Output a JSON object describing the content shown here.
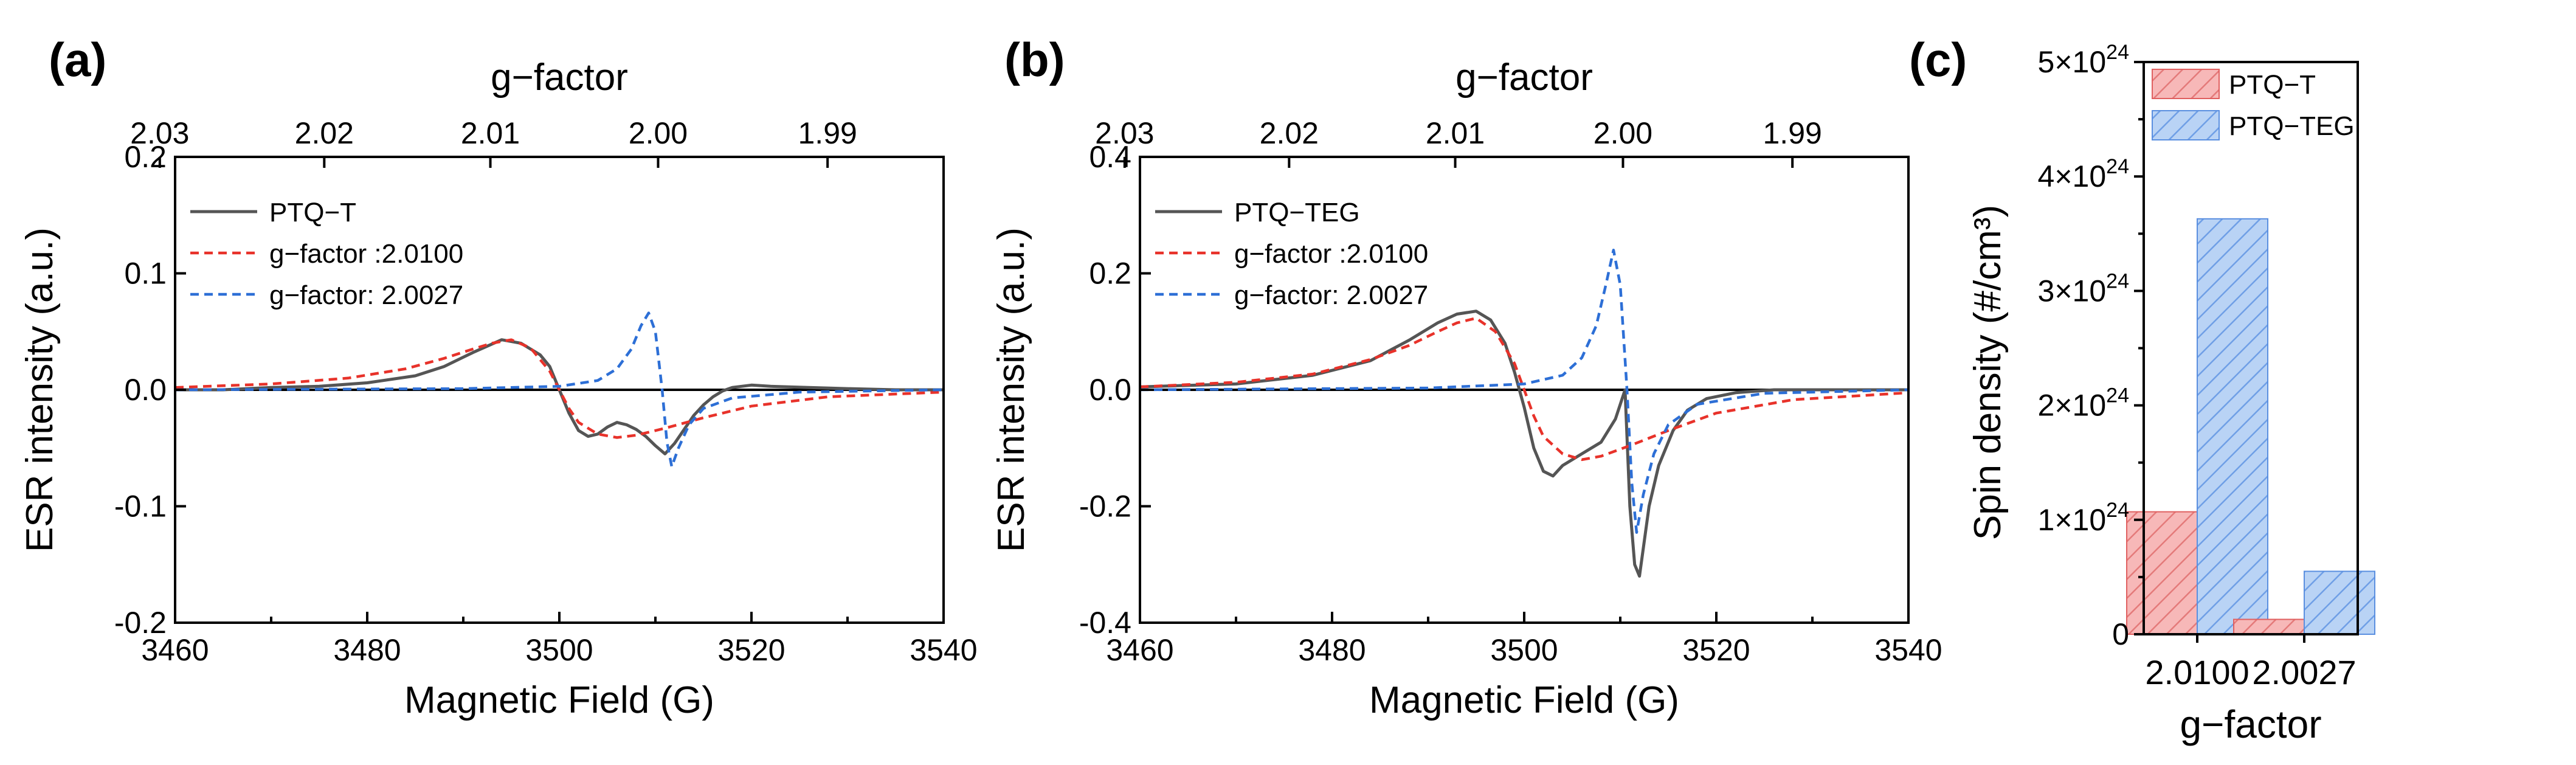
{
  "chart_data": [
    {
      "panel": "(a)",
      "type": "line",
      "xlabel": "Magnetic Field (G)",
      "ylabel": "ESR intensity (a.u.)",
      "top_axis_label": "g−factor",
      "top_axis_ticks": [
        "2.03",
        "2.02",
        "2.01",
        "2.00",
        "1.99"
      ],
      "top_axis_tick_values": [
        2.03,
        2.02,
        2.01,
        2.0,
        1.99
      ],
      "xlim": [
        3460,
        3540
      ],
      "ylim": [
        -0.2,
        0.2
      ],
      "xticks": [
        3460,
        3480,
        3500,
        3520,
        3540
      ],
      "yticks": [
        -0.2,
        -0.1,
        0.0,
        0.1,
        0.2
      ],
      "xtick_labels": [
        "3460",
        "3480",
        "3500",
        "3520",
        "3540"
      ],
      "ytick_labels": [
        "-0.2",
        "-0.1",
        "0.0",
        "0.1",
        "0.2"
      ],
      "legend_position": "top-left",
      "series": [
        {
          "name": "PTQ−T",
          "color": "#555555",
          "style": "solid",
          "x": [
            3460,
            3465,
            3470,
            3475,
            3480,
            3485,
            3488,
            3491,
            3494,
            3496,
            3498,
            3499,
            3500,
            3501,
            3502,
            3503,
            3504,
            3505,
            3506,
            3507,
            3508,
            3509,
            3510,
            3511,
            3512,
            3513,
            3514,
            3515,
            3516,
            3517,
            3518,
            3520,
            3522,
            3526,
            3530,
            3535,
            3540
          ],
          "y": [
            0.0,
            0.0,
            0.002,
            0.003,
            0.006,
            0.012,
            0.02,
            0.032,
            0.043,
            0.04,
            0.03,
            0.02,
            0.0,
            -0.02,
            -0.035,
            -0.04,
            -0.038,
            -0.032,
            -0.028,
            -0.03,
            -0.034,
            -0.04,
            -0.048,
            -0.055,
            -0.046,
            -0.034,
            -0.022,
            -0.013,
            -0.006,
            -0.001,
            0.002,
            0.004,
            0.003,
            0.002,
            0.001,
            0.0,
            0.0
          ]
        },
        {
          "name": "g−factor :2.0100",
          "color": "#e8322a",
          "style": "dashed",
          "x": [
            3460,
            3470,
            3478,
            3484,
            3488,
            3491,
            3493,
            3495,
            3497,
            3499,
            3500,
            3501,
            3502,
            3504,
            3506,
            3508,
            3511,
            3515,
            3520,
            3528,
            3540
          ],
          "y": [
            0.002,
            0.005,
            0.01,
            0.018,
            0.027,
            0.035,
            0.04,
            0.043,
            0.036,
            0.016,
            0.0,
            -0.016,
            -0.028,
            -0.038,
            -0.041,
            -0.039,
            -0.033,
            -0.024,
            -0.014,
            -0.006,
            -0.002
          ]
        },
        {
          "name": "g−factor: 2.0027",
          "color": "#2d6fd6",
          "style": "dashed",
          "x": [
            3460,
            3490,
            3500,
            3504,
            3506,
            3507.5,
            3508.5,
            3509.3,
            3510,
            3510.7,
            3511.2,
            3511.7,
            3512.4,
            3513.5,
            3515,
            3518,
            3525,
            3540
          ],
          "y": [
            0.0,
            0.001,
            0.003,
            0.008,
            0.018,
            0.035,
            0.055,
            0.066,
            0.05,
            0.0,
            -0.045,
            -0.066,
            -0.05,
            -0.03,
            -0.016,
            -0.007,
            -0.002,
            0.0
          ]
        }
      ]
    },
    {
      "panel": "(b)",
      "type": "line",
      "xlabel": "Magnetic Field (G)",
      "ylabel": "ESR intensity (a.u.)",
      "top_axis_label": "g−factor",
      "top_axis_ticks": [
        "2.03",
        "2.02",
        "2.01",
        "2.00",
        "1.99"
      ],
      "top_axis_tick_values": [
        2.03,
        2.02,
        2.01,
        2.0,
        1.99
      ],
      "xlim": [
        3460,
        3540
      ],
      "ylim": [
        -0.4,
        0.4
      ],
      "xticks": [
        3460,
        3480,
        3500,
        3520,
        3540
      ],
      "yticks": [
        -0.4,
        -0.2,
        0.0,
        0.2,
        0.4
      ],
      "xtick_labels": [
        "3460",
        "3480",
        "3500",
        "3520",
        "3540"
      ],
      "ytick_labels": [
        "-0.4",
        "-0.2",
        "0.0",
        "0.2",
        "0.4"
      ],
      "legend_position": "top-left",
      "series": [
        {
          "name": "PTQ−TEG",
          "color": "#555555",
          "style": "solid",
          "x": [
            3460,
            3470,
            3478,
            3484,
            3488,
            3491,
            3493,
            3495,
            3496.5,
            3498,
            3499,
            3500,
            3501,
            3502,
            3503,
            3504,
            3506,
            3508,
            3509.5,
            3510.5,
            3511,
            3511.5,
            3512,
            3512.5,
            3513,
            3514,
            3515.5,
            3517,
            3519,
            3522,
            3526,
            3530,
            3535,
            3540
          ],
          "y": [
            0.005,
            0.01,
            0.025,
            0.05,
            0.085,
            0.115,
            0.13,
            0.135,
            0.12,
            0.08,
            0.03,
            -0.03,
            -0.1,
            -0.14,
            -0.148,
            -0.13,
            -0.11,
            -0.09,
            -0.05,
            0.0,
            -0.2,
            -0.3,
            -0.32,
            -0.26,
            -0.2,
            -0.13,
            -0.07,
            -0.035,
            -0.015,
            -0.005,
            0.0,
            0.0,
            0.0,
            0.0
          ]
        },
        {
          "name": "g−factor :2.0100",
          "color": "#e8322a",
          "style": "dashed",
          "x": [
            3460,
            3470,
            3478,
            3484,
            3488,
            3491,
            3493,
            3495,
            3497,
            3499,
            3500,
            3501,
            3502,
            3504,
            3506,
            3508,
            3511,
            3515,
            3520,
            3528,
            3540
          ],
          "y": [
            0.005,
            0.013,
            0.027,
            0.052,
            0.076,
            0.1,
            0.115,
            0.123,
            0.1,
            0.045,
            0.0,
            -0.045,
            -0.08,
            -0.11,
            -0.12,
            -0.114,
            -0.096,
            -0.07,
            -0.04,
            -0.017,
            -0.005
          ]
        },
        {
          "name": "g−factor: 2.0027",
          "color": "#2d6fd6",
          "style": "dashed",
          "x": [
            3460,
            3490,
            3500,
            3504,
            3506,
            3507.5,
            3508.5,
            3509.3,
            3510,
            3510.7,
            3511.2,
            3511.7,
            3512.4,
            3513.5,
            3515,
            3518,
            3525,
            3540
          ],
          "y": [
            0.0,
            0.003,
            0.01,
            0.025,
            0.055,
            0.11,
            0.18,
            0.24,
            0.18,
            0.0,
            -0.16,
            -0.245,
            -0.18,
            -0.11,
            -0.06,
            -0.025,
            -0.006,
            0.0
          ]
        }
      ]
    },
    {
      "panel": "(c)",
      "type": "bar",
      "title": "",
      "xlabel": "g−factor",
      "ylabel": "Spin density (#/cm³)",
      "categories": [
        "2.0100",
        "2.0027"
      ],
      "ylim": [
        0,
        5e+24
      ],
      "yticks": [
        0,
        1e+24,
        2e+24,
        3e+24,
        4e+24,
        5e+24
      ],
      "ytick_labels": [
        {
          "base": "0",
          "exp": ""
        },
        {
          "base": "1×10",
          "exp": "24"
        },
        {
          "base": "2×10",
          "exp": "24"
        },
        {
          "base": "3×10",
          "exp": "24"
        },
        {
          "base": "4×10",
          "exp": "24"
        },
        {
          "base": "5×10",
          "exp": "24"
        }
      ],
      "legend_position": "top-left",
      "series": [
        {
          "name": "PTQ−T",
          "color": "#f4a0a0",
          "edge": "#e06060",
          "values": [
            1.07e+24,
            1.3e+23
          ]
        },
        {
          "name": "PTQ−TEG",
          "color": "#a9c8f2",
          "edge": "#5a8fe0",
          "values": [
            3.63e+24,
            5.5e+23
          ]
        }
      ]
    }
  ]
}
